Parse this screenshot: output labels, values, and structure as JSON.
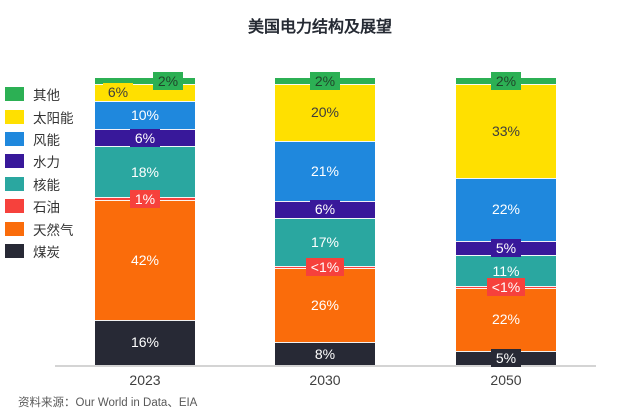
{
  "chart_data": {
    "type": "bar",
    "stacked": true,
    "title": "美国电力结构及展望",
    "source": "资料来源：Our World in Data、EIA",
    "unit": "%",
    "legend_position": "left",
    "gridlines": false,
    "y_range": [
      0,
      100
    ],
    "categories": [
      "2023",
      "2030",
      "2050"
    ],
    "series": [
      {
        "name": "煤炭",
        "color": "#272935",
        "label_color": "#ffffff",
        "values": [
          16,
          8,
          5
        ],
        "labels": [
          "16%",
          "8%",
          "5%"
        ]
      },
      {
        "name": "天然气",
        "color": "#fa6c0b",
        "label_color": "#ffffff",
        "values": [
          42,
          26,
          22
        ],
        "labels": [
          "42%",
          "26%",
          "22%"
        ]
      },
      {
        "name": "石油",
        "color": "#f6413c",
        "label_color": "#ffffff",
        "values": [
          1,
          0.5,
          0.5
        ],
        "labels": [
          "1%",
          "<1%",
          "<1%"
        ]
      },
      {
        "name": "核能",
        "color": "#2aa7a0",
        "label_color": "#ffffff",
        "values": [
          18,
          17,
          11
        ],
        "labels": [
          "18%",
          "17%",
          "11%"
        ]
      },
      {
        "name": "水力",
        "color": "#38189a",
        "label_color": "#ffffff",
        "values": [
          6,
          6,
          5
        ],
        "labels": [
          "6%",
          "6%",
          "5%"
        ]
      },
      {
        "name": "风能",
        "color": "#1f88dd",
        "label_color": "#ffffff",
        "values": [
          10,
          21,
          22
        ],
        "labels": [
          "10%",
          "21%",
          "22%"
        ]
      },
      {
        "name": "太阳能",
        "color": "#ffe000",
        "label_color": "#3d3d3d",
        "values": [
          6,
          20,
          33
        ],
        "labels": [
          "6%",
          "20%",
          "33%"
        ]
      },
      {
        "name": "其他",
        "color": "#2cb054",
        "label_color": "#20452b",
        "values": [
          2,
          2,
          2
        ],
        "labels": [
          "2%",
          "2%",
          "2%"
        ]
      }
    ]
  }
}
